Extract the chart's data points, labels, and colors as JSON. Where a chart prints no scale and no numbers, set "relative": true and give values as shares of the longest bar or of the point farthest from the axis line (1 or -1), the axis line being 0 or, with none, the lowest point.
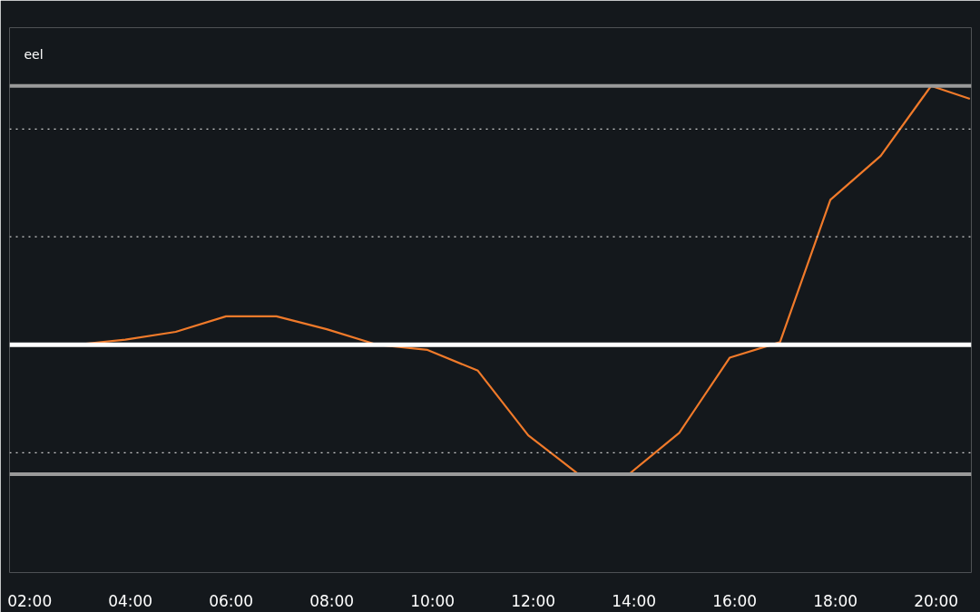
{
  "chart_data": {
    "type": "line",
    "relative": true,
    "x": [
      2.05,
      2.9,
      3.9,
      4.9,
      5.9,
      6.9,
      7.9,
      8.9,
      9.9,
      10.9,
      11.9,
      12.9,
      13.9,
      14.9,
      15.9,
      16.9,
      17.9,
      18.9,
      19.9,
      20.67
    ],
    "series": [
      {
        "color": "#f07a2a",
        "values": [
          0,
          0,
          0.02,
          0.05,
          0.11,
          0.11,
          0.06,
          0,
          -0.02,
          -0.1,
          -0.35,
          -0.5,
          -0.5,
          -0.34,
          -0.05,
          0.01,
          0.56,
          0.73,
          1.0,
          0.95
        ]
      }
    ],
    "xlim": [
      1.6,
      20.7
    ],
    "xticks": [
      {
        "value": 2,
        "label": "02:00"
      },
      {
        "value": 4,
        "label": "04:00"
      },
      {
        "value": 6,
        "label": "06:00"
      },
      {
        "value": 8,
        "label": "08:00"
      },
      {
        "value": 10,
        "label": "10:00"
      },
      {
        "value": 12,
        "label": "12:00"
      },
      {
        "value": 14,
        "label": "14:00"
      },
      {
        "value": 16,
        "label": "16:00"
      },
      {
        "value": 18,
        "label": "18:00"
      },
      {
        "value": 20,
        "label": "20:00"
      }
    ],
    "tick_labels": "x",
    "grid": false,
    "marker": "none",
    "line_style": "solid",
    "ref_lines": [
      {
        "axis": "y",
        "value": 1.0,
        "color": "#9a9a9a",
        "line_style": "solid"
      },
      {
        "axis": "y",
        "value": -0.5,
        "color": "#9a9a9a",
        "line_style": "solid"
      },
      {
        "axis": "y",
        "value": 0.833,
        "color": "#cfcfcf",
        "line_style": "dotted"
      },
      {
        "axis": "y",
        "value": 0.417,
        "color": "#cfcfcf",
        "line_style": "dotted"
      },
      {
        "axis": "y",
        "value": -0.417,
        "color": "#cfcfcf",
        "line_style": "dotted"
      }
    ],
    "annotations": [
      "eel"
    ]
  }
}
